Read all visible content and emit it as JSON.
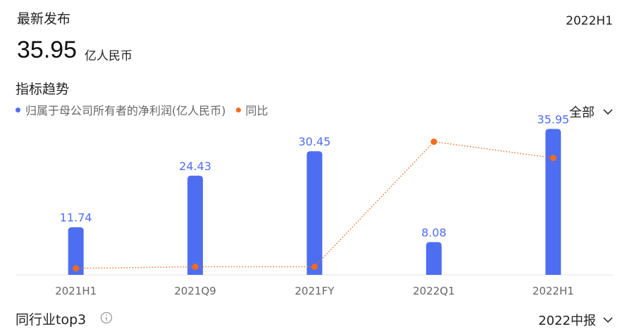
{
  "latest": {
    "title": "最新发布",
    "period": "2022H1",
    "value": "35.95",
    "unit": "亿人民币"
  },
  "trend": {
    "title": "指标趋势",
    "range_label": "全部",
    "range_icon": "chevron-down-icon"
  },
  "peer": {
    "title": "同行业top3",
    "info_icon": "info-icon",
    "period": "2022中报",
    "period_icon": "chevron-down-icon"
  },
  "colors": {
    "bar": "#4e6ef2",
    "line": "#f26b1d",
    "label": "#4e6ef2",
    "axis": "#e6e6e6",
    "tick": "#666666"
  },
  "chart_data": {
    "type": "bar",
    "categories": [
      "2021H1",
      "2021Q9",
      "2021FY",
      "2022Q1",
      "2022H1"
    ],
    "series": [
      {
        "name": "归属于母公司所有者的净利润(亿人民币)",
        "type": "bar",
        "values": [
          11.74,
          24.43,
          30.45,
          8.08,
          35.95
        ],
        "labels": [
          "11.74",
          "24.43",
          "30.45",
          "8.08",
          "35.95"
        ]
      },
      {
        "name": "同比",
        "type": "line",
        "values": [
          4,
          5,
          5,
          82,
          72
        ]
      }
    ],
    "ylim_bar": [
      0,
      40
    ],
    "ylim_line": [
      0,
      100
    ],
    "legend": "top-left",
    "grid": false
  }
}
